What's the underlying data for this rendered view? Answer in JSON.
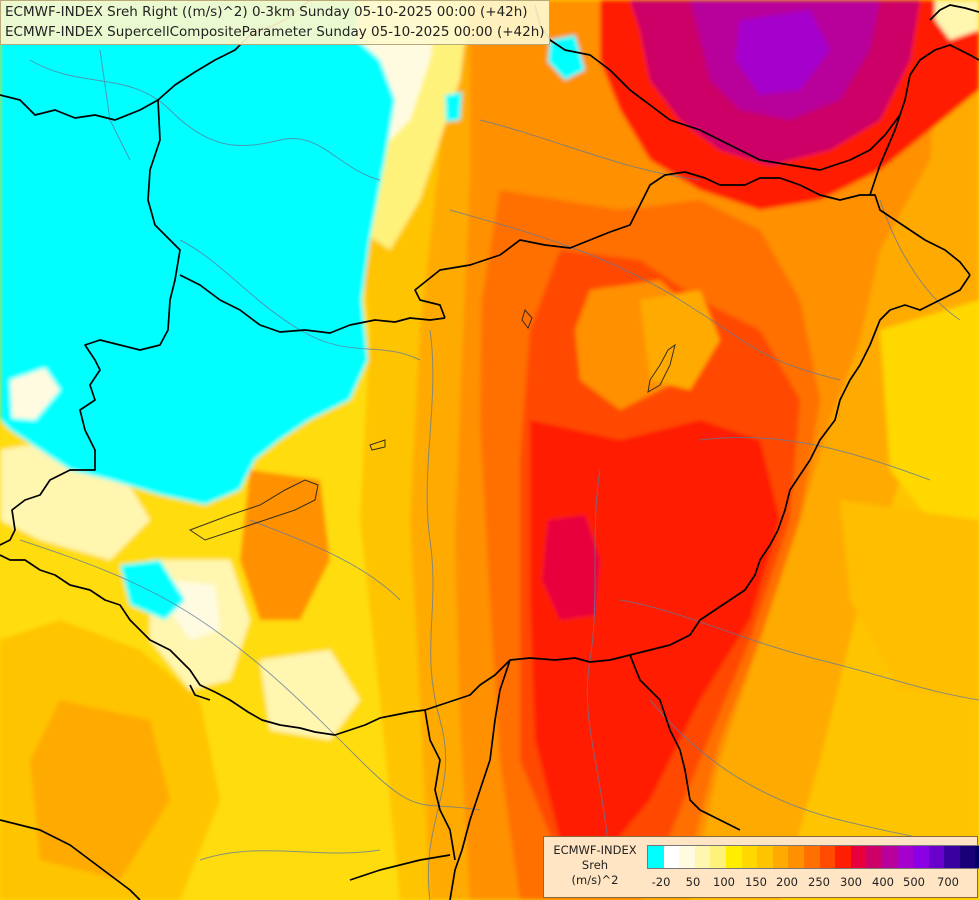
{
  "header": {
    "line1": "ECMWF-INDEX Sreh Right ((m/s)^2) 0-3km Sunday 05-10-2025 00:00 (+42h)",
    "line2": "ECMWF-INDEX SupercellCompositeParameter Sunday 05-10-2025 00:00 (+42h)"
  },
  "legend": {
    "source": "ECMWF-INDEX",
    "variable": "Sreh",
    "unit": "(m/s)^2",
    "colors": [
      "#00ffff",
      "#ffffff",
      "#fffbe0",
      "#fff6b0",
      "#fff27a",
      "#ffee00",
      "#ffd800",
      "#ffc400",
      "#ffaa00",
      "#ff9000",
      "#ff7000",
      "#ff4a00",
      "#ff1e00",
      "#e8003c",
      "#cc0066",
      "#b8009a",
      "#a500cc",
      "#8c00e6",
      "#6a00cc",
      "#3a00a0",
      "#1a0078",
      "#000066"
    ],
    "tick_labels": [
      "-20",
      "50",
      "100",
      "150",
      "200",
      "250",
      "300",
      "400",
      "500",
      "700"
    ]
  }
}
